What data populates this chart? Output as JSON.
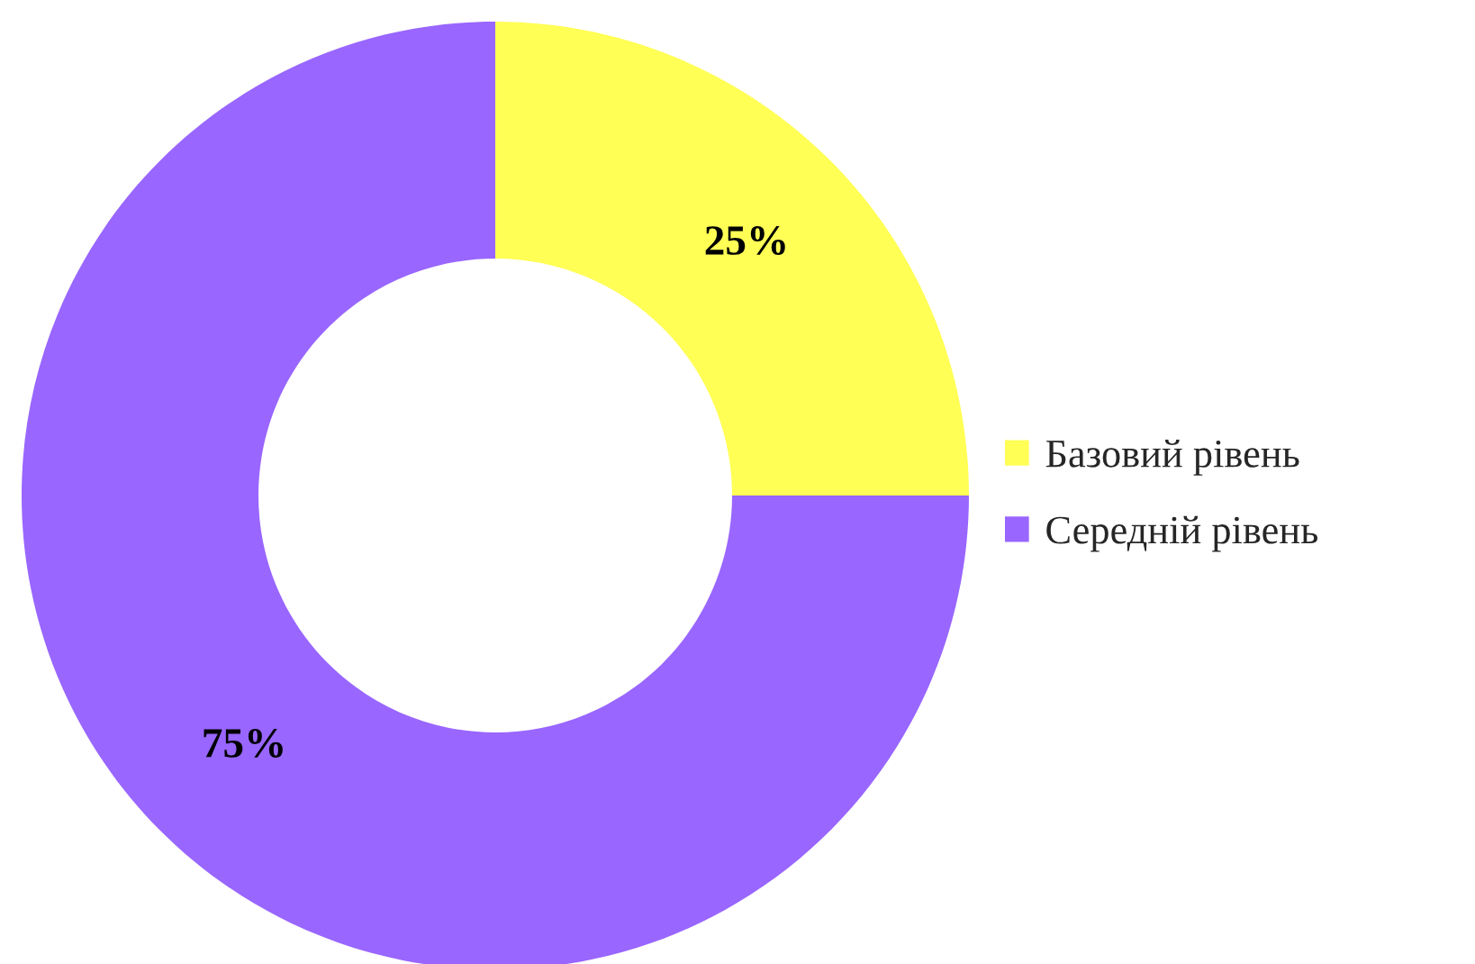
{
  "chart_data": {
    "type": "donut",
    "categories": [
      "Базовий рівень",
      "Середній рівень"
    ],
    "values": [
      25,
      75
    ],
    "colors": [
      "#ffff55",
      "#9966ff"
    ],
    "value_labels": [
      "25%",
      "75%"
    ],
    "legend": "right"
  }
}
